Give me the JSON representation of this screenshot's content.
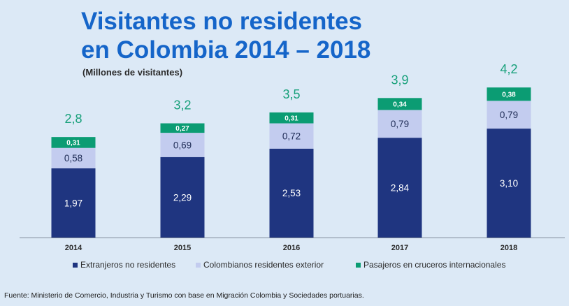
{
  "title_line1": "Visitantes no residentes",
  "title_line2": "en Colombia 2014 – 2018",
  "subtitle": "(Millones de visitantes)",
  "source": "Fuente: Ministerio de Comercio, Industria y Turismo con base en Migración Colombia y Sociedades portuarias.",
  "chart_data": {
    "type": "bar",
    "stacked": true,
    "categories": [
      "2014",
      "2015",
      "2016",
      "2017",
      "2018"
    ],
    "series": [
      {
        "name": "Extranjeros no residentes",
        "values": [
          1.97,
          2.29,
          2.53,
          2.84,
          3.1
        ],
        "labels": [
          "1,97",
          "2,29",
          "2,53",
          "2,84",
          "3,10"
        ],
        "color": "#1f3580"
      },
      {
        "name": "Colombianos residentes exterior",
        "values": [
          0.58,
          0.69,
          0.72,
          0.79,
          0.79
        ],
        "labels": [
          "0,58",
          "0,69",
          "0,72",
          "0,79",
          "0,79"
        ],
        "color": "#c3ccef"
      },
      {
        "name": "Pasajeros en cruceros internacionales",
        "values": [
          0.31,
          0.27,
          0.31,
          0.34,
          0.38
        ],
        "labels": [
          "0,31",
          "0,27",
          "0,31",
          "0,34",
          "0,38"
        ],
        "color": "#0b9c73"
      }
    ],
    "totals": [
      "2,8",
      "3,2",
      "3,5",
      "3,9",
      "4,2"
    ],
    "total_color": "#17a07a",
    "ylim": [
      0,
      4.3
    ],
    "legend_position": "bottom",
    "grid": false
  }
}
